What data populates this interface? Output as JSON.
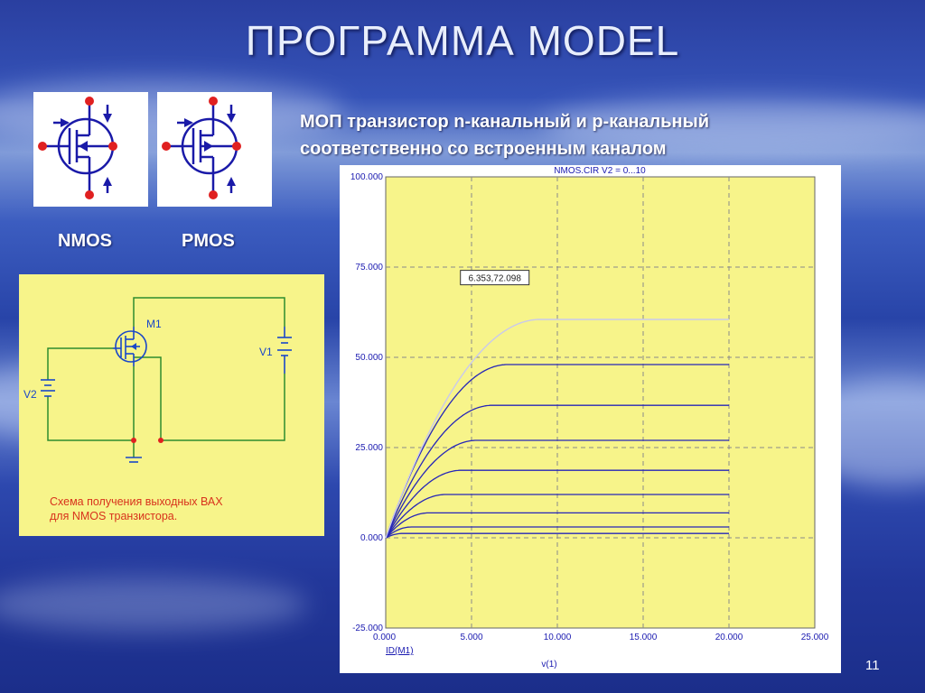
{
  "slide": {
    "title": "ПРОГРАММА MODEL",
    "heading_line1": "МОП транзистор n-канальный  и р-канальный",
    "heading_line2": "соответственно со встроенным каналом",
    "nmos_label": "NMOS",
    "pmos_label": "PMOS",
    "page_number": "11"
  },
  "schematic": {
    "transistor_label": "M1",
    "source_v1_label": "V1",
    "source_v2_label": "V2",
    "caption_line1": "Схема получения выходных ВАХ",
    "caption_line2": "для NMOS транзистора.",
    "wire_color": "#2e8b2e",
    "node_color": "#e02020"
  },
  "chart_data": {
    "type": "line",
    "title": "NMOS.CIR V2 = 0...10",
    "xlabel": "v(1)",
    "ylabel": "ID(M1)",
    "xlim": [
      0,
      25
    ],
    "ylim": [
      -25,
      100
    ],
    "x_ticks": [
      "0.000",
      "5.000",
      "10.000",
      "15.000",
      "20.000",
      "25.000"
    ],
    "y_ticks": [
      "100.000",
      "75.000",
      "50.000",
      "25.000",
      "0.000",
      "-25.000"
    ],
    "grid": true,
    "cursor_label": "6.353,72.098",
    "series": [
      {
        "saturation": 1.2,
        "vsat": 1.0
      },
      {
        "saturation": 3.0,
        "vsat": 1.5
      },
      {
        "saturation": 6.9,
        "vsat": 2.5
      },
      {
        "saturation": 12.0,
        "vsat": 3.5
      },
      {
        "saturation": 18.7,
        "vsat": 4.4
      },
      {
        "saturation": 27.0,
        "vsat": 5.3
      },
      {
        "saturation": 36.7,
        "vsat": 6.2
      },
      {
        "saturation": 48.0,
        "vsat": 7.1
      },
      {
        "saturation": 60.5,
        "vsat": 9.0,
        "highlighted": true
      }
    ]
  }
}
